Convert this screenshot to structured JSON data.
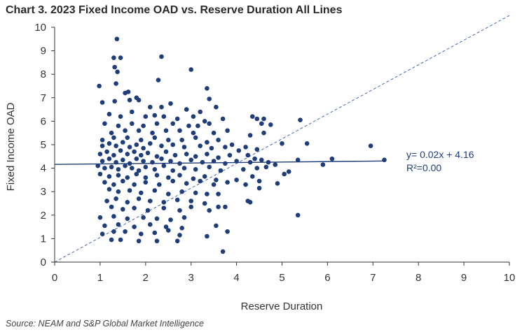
{
  "title": "Chart 3. 2023 Fixed Income OAD vs. Reserve Duration All Lines",
  "source": "Source: NEAM and S&P Global Market Intelligence",
  "colors": {
    "point": "#1f3d7a",
    "trendline": "#1f3d7a",
    "equality_line": "#2e5aa8",
    "annotation": "#1f3d7a",
    "axis": "#333333"
  },
  "chart_data": {
    "type": "scatter",
    "xlabel": "Reserve Duration",
    "ylabel": "Fixed Income OAD",
    "xlim": [
      0,
      10
    ],
    "ylim": [
      0,
      10
    ],
    "xticks": [
      "0",
      "1",
      "2",
      "3",
      "4",
      "5",
      "6",
      "7",
      "8",
      "9",
      "10"
    ],
    "yticks": [
      "0",
      "1",
      "2",
      "3",
      "4",
      "5",
      "6",
      "7",
      "8",
      "9",
      "10"
    ],
    "grid": false,
    "legend": "none",
    "trendline": {
      "slope": 0.02,
      "intercept": 4.16,
      "x_range": [
        0,
        7.25
      ],
      "equation": "y= 0.02x + 4.16",
      "r2": "R²=0.00"
    },
    "reference_line": {
      "style": "dashed",
      "from": [
        0,
        0
      ],
      "to": [
        10,
        10.5
      ]
    },
    "points": [
      [
        1.37,
        9.5
      ],
      [
        1.3,
        8.7
      ],
      [
        1.45,
        8.7
      ],
      [
        1.32,
        8.3
      ],
      [
        1.38,
        8.1
      ],
      [
        2.35,
        8.75
      ],
      [
        2.28,
        7.75
      ],
      [
        3.0,
        8.2
      ],
      [
        0.98,
        7.5
      ],
      [
        1.35,
        7.6
      ],
      [
        1.55,
        7.2
      ],
      [
        1.62,
        7.25
      ],
      [
        1.8,
        7.0
      ],
      [
        3.35,
        7.4
      ],
      [
        3.4,
        6.95
      ],
      [
        1.05,
        6.8
      ],
      [
        1.32,
        6.85
      ],
      [
        1.65,
        6.9
      ],
      [
        1.85,
        6.9
      ],
      [
        2.1,
        6.6
      ],
      [
        2.35,
        6.6
      ],
      [
        2.55,
        6.75
      ],
      [
        2.9,
        6.5
      ],
      [
        3.55,
        6.6
      ],
      [
        3.2,
        6.4
      ],
      [
        1.2,
        6.3
      ],
      [
        1.45,
        6.2
      ],
      [
        1.7,
        6.4
      ],
      [
        2.0,
        6.2
      ],
      [
        2.2,
        6.25
      ],
      [
        2.4,
        6.2
      ],
      [
        2.7,
        6.1
      ],
      [
        3.05,
        6.2
      ],
      [
        3.3,
        6.0
      ],
      [
        3.7,
        6.1
      ],
      [
        4.35,
        6.2
      ],
      [
        4.45,
        6.1
      ],
      [
        4.6,
        6.1
      ],
      [
        4.55,
        5.9
      ],
      [
        4.75,
        5.85
      ],
      [
        5.4,
        6.05
      ],
      [
        1.1,
        5.9
      ],
      [
        1.4,
        5.8
      ],
      [
        1.7,
        5.9
      ],
      [
        1.95,
        5.8
      ],
      [
        2.25,
        5.9
      ],
      [
        2.6,
        5.9
      ],
      [
        2.95,
        5.8
      ],
      [
        3.15,
        5.8
      ],
      [
        3.4,
        5.9
      ],
      [
        1.25,
        5.5
      ],
      [
        1.55,
        5.6
      ],
      [
        1.85,
        5.6
      ],
      [
        2.15,
        5.5
      ],
      [
        2.45,
        5.6
      ],
      [
        2.75,
        5.6
      ],
      [
        3.05,
        5.5
      ],
      [
        3.5,
        5.5
      ],
      [
        3.8,
        5.6
      ],
      [
        4.3,
        5.4
      ],
      [
        4.6,
        5.5
      ],
      [
        5.0,
        5.05
      ],
      [
        5.55,
        5.05
      ],
      [
        6.95,
        4.95
      ],
      [
        1.05,
        5.2
      ],
      [
        1.3,
        5.3
      ],
      [
        1.6,
        5.3
      ],
      [
        1.9,
        5.2
      ],
      [
        2.2,
        5.3
      ],
      [
        2.5,
        5.2
      ],
      [
        2.8,
        5.2
      ],
      [
        3.1,
        5.3
      ],
      [
        3.35,
        5.1
      ],
      [
        3.6,
        5.2
      ],
      [
        3.9,
        5.0
      ],
      [
        4.2,
        4.9
      ],
      [
        4.05,
        4.75
      ],
      [
        4.45,
        4.8
      ],
      [
        4.25,
        4.55
      ],
      [
        4.4,
        4.4
      ],
      [
        1.05,
        4.95
      ],
      [
        1.2,
        5.05
      ],
      [
        1.35,
        4.95
      ],
      [
        1.5,
        5.1
      ],
      [
        1.65,
        4.9
      ],
      [
        1.8,
        5.0
      ],
      [
        1.95,
        4.85
      ],
      [
        2.1,
        5.05
      ],
      [
        2.35,
        4.95
      ],
      [
        2.6,
        5.0
      ],
      [
        2.85,
        4.9
      ],
      [
        3.2,
        4.95
      ],
      [
        3.45,
        4.85
      ],
      [
        3.75,
        4.9
      ],
      [
        1.0,
        4.6
      ],
      [
        1.15,
        4.7
      ],
      [
        1.3,
        4.55
      ],
      [
        1.45,
        4.75
      ],
      [
        1.6,
        4.6
      ],
      [
        1.75,
        4.7
      ],
      [
        1.9,
        4.55
      ],
      [
        2.05,
        4.65
      ],
      [
        2.25,
        4.5
      ],
      [
        2.45,
        4.7
      ],
      [
        2.65,
        4.55
      ],
      [
        2.9,
        4.6
      ],
      [
        3.1,
        4.5
      ],
      [
        3.35,
        4.6
      ],
      [
        3.6,
        4.45
      ],
      [
        3.85,
        4.55
      ],
      [
        1.05,
        4.3
      ],
      [
        1.2,
        4.4
      ],
      [
        1.35,
        4.25
      ],
      [
        1.5,
        4.35
      ],
      [
        1.65,
        4.2
      ],
      [
        1.8,
        4.4
      ],
      [
        1.95,
        4.3
      ],
      [
        2.15,
        4.25
      ],
      [
        2.35,
        4.4
      ],
      [
        2.55,
        4.3
      ],
      [
        2.75,
        4.2
      ],
      [
        3.0,
        4.35
      ],
      [
        3.25,
        4.25
      ],
      [
        3.5,
        4.3
      ],
      [
        3.75,
        4.2
      ],
      [
        4.0,
        4.3
      ],
      [
        4.3,
        4.25
      ],
      [
        4.55,
        4.35
      ],
      [
        4.7,
        4.25
      ],
      [
        5.35,
        4.35
      ],
      [
        6.1,
        4.4
      ],
      [
        7.25,
        4.35
      ],
      [
        5.9,
        4.15
      ],
      [
        0.95,
        4.1
      ],
      [
        1.1,
        4.0
      ],
      [
        1.25,
        4.05
      ],
      [
        1.4,
        3.95
      ],
      [
        1.55,
        4.1
      ],
      [
        1.7,
        4.0
      ],
      [
        1.85,
        3.9
      ],
      [
        2.0,
        4.05
      ],
      [
        2.2,
        3.95
      ],
      [
        2.4,
        4.1
      ],
      [
        2.6,
        3.9
      ],
      [
        2.85,
        4.0
      ],
      [
        3.1,
        3.95
      ],
      [
        3.4,
        4.05
      ],
      [
        3.65,
        3.9
      ],
      [
        4.15,
        3.95
      ],
      [
        4.45,
        4.0
      ],
      [
        4.65,
        4.05
      ],
      [
        4.85,
        4.15
      ],
      [
        5.05,
        3.75
      ],
      [
        5.15,
        3.85
      ],
      [
        4.35,
        3.65
      ],
      [
        1.0,
        3.75
      ],
      [
        1.2,
        3.65
      ],
      [
        1.4,
        3.7
      ],
      [
        1.6,
        3.6
      ],
      [
        1.8,
        3.75
      ],
      [
        2.0,
        3.6
      ],
      [
        2.25,
        3.7
      ],
      [
        2.5,
        3.6
      ],
      [
        2.75,
        3.7
      ],
      [
        3.05,
        3.55
      ],
      [
        3.3,
        3.65
      ],
      [
        3.55,
        3.5
      ],
      [
        1.1,
        3.4
      ],
      [
        1.3,
        3.3
      ],
      [
        1.5,
        3.45
      ],
      [
        1.75,
        3.3
      ],
      [
        2.0,
        3.4
      ],
      [
        2.3,
        3.3
      ],
      [
        2.6,
        3.45
      ],
      [
        2.9,
        3.35
      ],
      [
        3.2,
        3.45
      ],
      [
        3.5,
        3.3
      ],
      [
        3.8,
        3.4
      ],
      [
        4.0,
        3.5
      ],
      [
        4.2,
        3.3
      ],
      [
        4.5,
        3.45
      ],
      [
        4.9,
        3.35
      ],
      [
        4.5,
        3.15
      ],
      [
        1.2,
        3.1
      ],
      [
        1.4,
        3.0
      ],
      [
        1.65,
        3.05
      ],
      [
        1.9,
        2.95
      ],
      [
        2.2,
        3.05
      ],
      [
        2.5,
        2.9
      ],
      [
        2.8,
        3.0
      ],
      [
        3.1,
        2.95
      ],
      [
        3.35,
        2.9
      ],
      [
        3.6,
        2.9
      ],
      [
        1.15,
        2.6
      ],
      [
        1.35,
        2.7
      ],
      [
        1.6,
        2.55
      ],
      [
        1.85,
        2.7
      ],
      [
        2.1,
        2.6
      ],
      [
        2.4,
        2.55
      ],
      [
        2.7,
        2.65
      ],
      [
        3.0,
        2.6
      ],
      [
        3.3,
        2.5
      ],
      [
        4.25,
        2.6
      ],
      [
        4.3,
        2.55
      ],
      [
        1.25,
        2.35
      ],
      [
        1.5,
        2.25
      ],
      [
        1.75,
        2.3
      ],
      [
        2.05,
        2.2
      ],
      [
        2.4,
        2.3
      ],
      [
        2.75,
        2.2
      ],
      [
        3.0,
        2.35
      ],
      [
        3.6,
        2.35
      ],
      [
        3.75,
        2.35
      ],
      [
        3.4,
        2.2
      ],
      [
        5.35,
        2.0
      ],
      [
        1.0,
        1.9
      ],
      [
        1.3,
        1.95
      ],
      [
        1.6,
        1.85
      ],
      [
        1.95,
        1.9
      ],
      [
        2.25,
        1.85
      ],
      [
        2.55,
        1.8
      ],
      [
        2.85,
        1.9
      ],
      [
        1.1,
        1.55
      ],
      [
        1.4,
        1.6
      ],
      [
        1.75,
        1.5
      ],
      [
        2.1,
        1.6
      ],
      [
        2.45,
        1.5
      ],
      [
        2.8,
        1.45
      ],
      [
        3.55,
        1.55
      ],
      [
        1.05,
        1.2
      ],
      [
        1.3,
        1.3
      ],
      [
        1.55,
        1.3
      ],
      [
        1.9,
        1.2
      ],
      [
        2.2,
        1.25
      ],
      [
        2.5,
        1.35
      ],
      [
        2.75,
        1.15
      ],
      [
        3.8,
        1.3
      ],
      [
        3.35,
        1.1
      ],
      [
        1.25,
        0.95
      ],
      [
        1.45,
        0.95
      ],
      [
        1.85,
        0.9
      ],
      [
        2.25,
        0.9
      ],
      [
        2.7,
        0.9
      ],
      [
        3.7,
        0.45
      ]
    ]
  }
}
